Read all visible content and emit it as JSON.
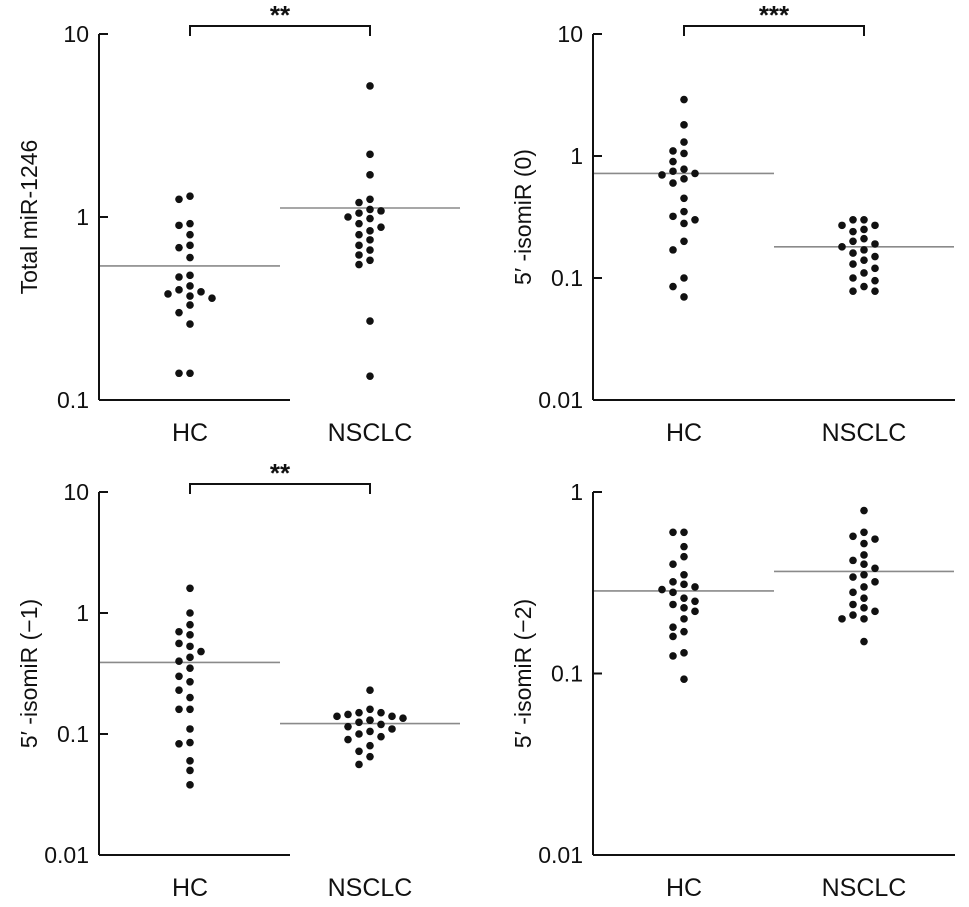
{
  "chart_data": [
    {
      "type": "scatter",
      "yscale": "log",
      "ylabel": "Total miR-1246",
      "ylim": [
        0.1,
        10
      ],
      "yticks": [
        "0.1",
        "1",
        "10"
      ],
      "categories": [
        "HC",
        "NSCLC"
      ],
      "medians": [
        0.54,
        1.12
      ],
      "significance": "**",
      "series": [
        {
          "values": [
            1.3,
            1.25,
            0.92,
            0.9,
            0.8,
            0.7,
            0.68,
            0.6,
            0.48,
            0.47,
            0.42,
            0.4,
            0.39,
            0.38,
            0.37,
            0.36,
            0.33,
            0.3,
            0.26,
            0.14,
            0.14
          ]
        },
        {
          "values": [
            5.2,
            2.2,
            1.7,
            1.25,
            1.2,
            1.1,
            1.08,
            1.05,
            1.0,
            0.98,
            0.92,
            0.88,
            0.84,
            0.8,
            0.75,
            0.7,
            0.66,
            0.62,
            0.58,
            0.55,
            0.27,
            0.135
          ]
        }
      ]
    },
    {
      "type": "scatter",
      "yscale": "log",
      "ylabel": "5′ -isomiR (0)",
      "ylim": [
        0.01,
        10
      ],
      "yticks": [
        "0.01",
        "0.1",
        "1",
        "10"
      ],
      "categories": [
        "HC",
        "NSCLC"
      ],
      "medians": [
        0.72,
        0.18
      ],
      "significance": "***",
      "series": [
        {
          "values": [
            2.9,
            1.8,
            1.3,
            1.1,
            1.05,
            0.9,
            0.78,
            0.75,
            0.72,
            0.7,
            0.65,
            0.6,
            0.45,
            0.35,
            0.32,
            0.3,
            0.28,
            0.2,
            0.17,
            0.1,
            0.085,
            0.07
          ]
        },
        {
          "values": [
            0.3,
            0.3,
            0.27,
            0.27,
            0.25,
            0.24,
            0.21,
            0.2,
            0.19,
            0.18,
            0.17,
            0.16,
            0.15,
            0.14,
            0.13,
            0.12,
            0.11,
            0.1,
            0.095,
            0.085,
            0.078,
            0.078
          ]
        }
      ]
    },
    {
      "type": "scatter",
      "yscale": "log",
      "ylabel": "5′ -isomiR (−1)",
      "ylim": [
        0.01,
        10
      ],
      "yticks": [
        "0.01",
        "0.1",
        "1",
        "10"
      ],
      "categories": [
        "HC",
        "NSCLC"
      ],
      "medians": [
        0.39,
        0.122
      ],
      "significance": "**",
      "series": [
        {
          "values": [
            1.6,
            1.0,
            0.8,
            0.7,
            0.66,
            0.56,
            0.53,
            0.48,
            0.43,
            0.4,
            0.35,
            0.3,
            0.27,
            0.23,
            0.2,
            0.16,
            0.16,
            0.11,
            0.085,
            0.083,
            0.06,
            0.05,
            0.038
          ]
        },
        {
          "values": [
            0.23,
            0.16,
            0.15,
            0.15,
            0.145,
            0.14,
            0.14,
            0.135,
            0.13,
            0.13,
            0.125,
            0.12,
            0.115,
            0.11,
            0.105,
            0.1,
            0.095,
            0.09,
            0.08,
            0.072,
            0.065,
            0.056
          ]
        }
      ]
    },
    {
      "type": "scatter",
      "yscale": "log",
      "ylabel": "5′ -isomiR (−2)",
      "ylim": [
        0.01,
        1
      ],
      "yticks": [
        "0.01",
        "0.1",
        "1"
      ],
      "categories": [
        "HC",
        "NSCLC"
      ],
      "medians": [
        0.285,
        0.365
      ],
      "significance": "",
      "series": [
        {
          "values": [
            0.6,
            0.6,
            0.5,
            0.44,
            0.4,
            0.35,
            0.32,
            0.31,
            0.3,
            0.29,
            0.28,
            0.26,
            0.25,
            0.24,
            0.23,
            0.22,
            0.2,
            0.18,
            0.17,
            0.16,
            0.13,
            0.125,
            0.093
          ]
        },
        {
          "values": [
            0.79,
            0.6,
            0.57,
            0.55,
            0.52,
            0.45,
            0.42,
            0.4,
            0.38,
            0.35,
            0.34,
            0.32,
            0.3,
            0.28,
            0.26,
            0.24,
            0.23,
            0.22,
            0.21,
            0.2,
            0.2,
            0.15
          ]
        }
      ]
    }
  ]
}
